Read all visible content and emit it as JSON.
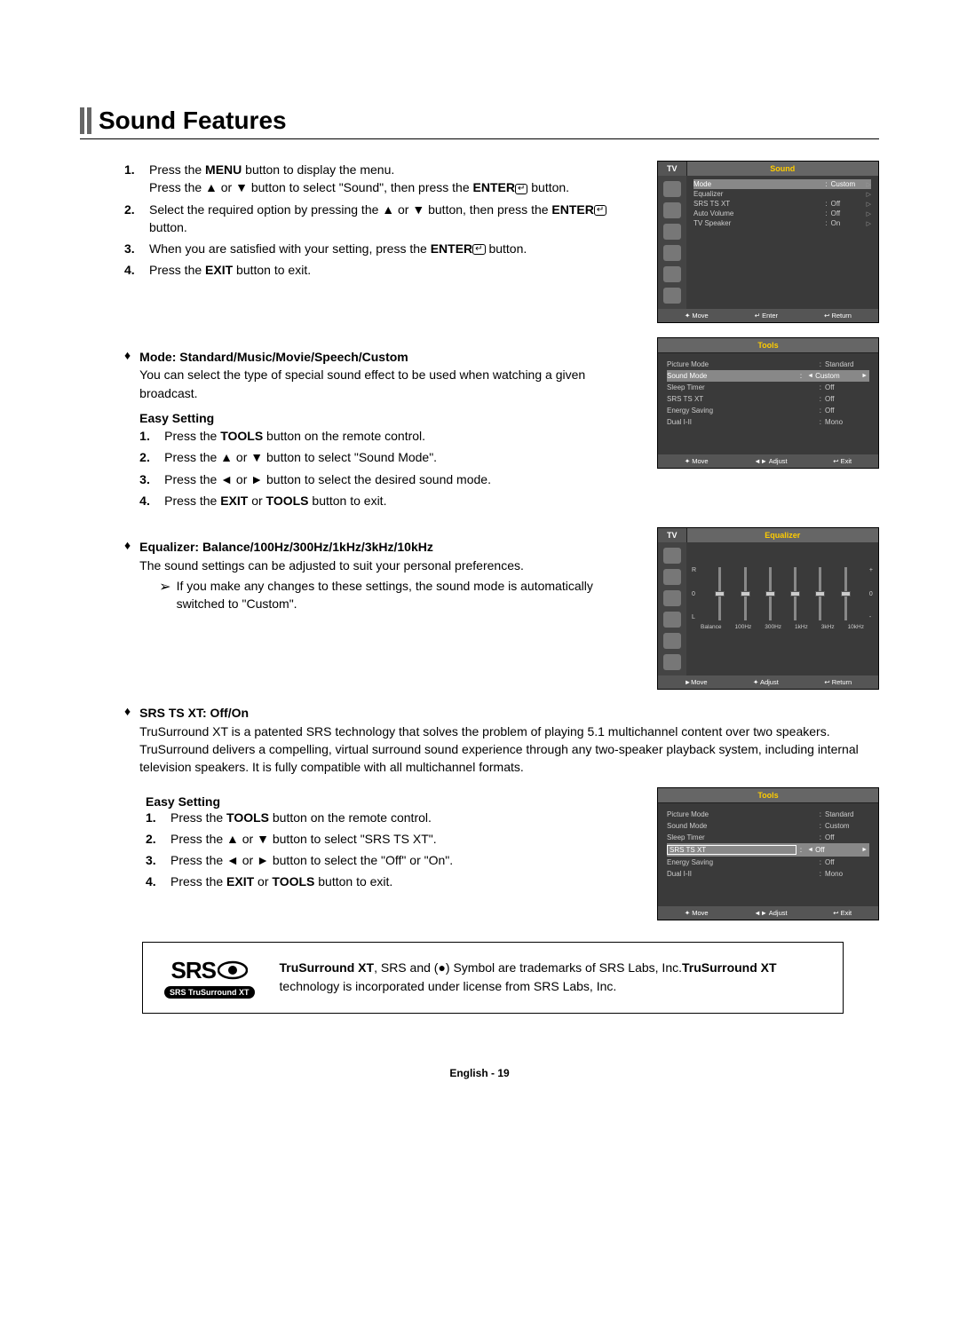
{
  "title": "Sound Features",
  "steps": [
    {
      "num": "1.",
      "html": "Press the <b>MENU</b> button to display the menu.<br>Press the ▲ or ▼ button to select \"Sound\", then press the <b>ENTER</b><span class='enter-icon'>↵</span> button."
    },
    {
      "num": "2.",
      "html": "Select the required option by pressing the ▲ or ▼ button, then press the <b>ENTER</b><span class='enter-icon'>↵</span> button."
    },
    {
      "num": "3.",
      "html": "When you are satisfied with your setting, press the <b>ENTER</b><span class='enter-icon'>↵</span> button."
    },
    {
      "num": "4.",
      "html": "Press the <b>EXIT</b> button to exit."
    }
  ],
  "mode": {
    "head": "Mode: Standard/Music/Movie/Speech/Custom",
    "desc": "You can select the type of special sound effect to be used when watching a given broadcast.",
    "easy_head": "Easy Setting",
    "easy": [
      {
        "num": "1.",
        "html": "Press the <b>TOOLS</b> button on the remote control."
      },
      {
        "num": "2.",
        "html": "Press the ▲ or ▼ button to select \"Sound Mode\"."
      },
      {
        "num": "3.",
        "html": "Press the ◄ or ► button to select the desired sound mode."
      },
      {
        "num": "4.",
        "html": "Press the <b>EXIT</b> or <b>TOOLS</b> button to exit."
      }
    ]
  },
  "eq": {
    "head": "Equalizer: Balance/100Hz/300Hz/1kHz/3kHz/10kHz",
    "desc": "The sound settings can be adjusted to suit your personal preferences.",
    "note": "If you make any changes to these settings, the sound mode is automatically switched to \"Custom\"."
  },
  "srs": {
    "head": "SRS TS XT: Off/On",
    "desc": "TruSurround XT is a patented SRS technology that solves the problem of playing 5.1 multichannel content over two speakers. TruSurround delivers a compelling, virtual surround sound experience through any two-speaker playback system, including internal television speakers. It is fully compatible with all multichannel formats.",
    "easy_head": "Easy Setting",
    "easy": [
      {
        "num": "1.",
        "html": "Press the <b>TOOLS</b> button on the remote control."
      },
      {
        "num": "2.",
        "html": "Press the ▲ or ▼ button to select \"SRS TS XT\"."
      },
      {
        "num": "3.",
        "html": "Press the ◄ or ► button to select the \"Off\" or \"On\"."
      },
      {
        "num": "4.",
        "html": "Press the <b>EXIT</b> or <b>TOOLS</b> button to exit."
      }
    ]
  },
  "osd_sound": {
    "tab_left": "TV",
    "tab_right": "Sound",
    "rows": [
      {
        "l": "Mode",
        "v": "Custom",
        "sel": true
      },
      {
        "l": "Equalizer",
        "v": ""
      },
      {
        "l": "SRS TS XT",
        "v": "Off"
      },
      {
        "l": "Auto Volume",
        "v": "Off"
      },
      {
        "l": "TV Speaker",
        "v": "On"
      }
    ],
    "footer": [
      "✦ Move",
      "↵ Enter",
      "↩ Return"
    ]
  },
  "osd_tools1": {
    "header": "Tools",
    "rows": [
      {
        "l": "Picture Mode",
        "v": "Standard"
      },
      {
        "l": "Sound Mode",
        "v": "Custom",
        "sel": true,
        "arrows": true
      },
      {
        "l": "Sleep Timer",
        "v": "Off"
      },
      {
        "l": "SRS TS XT",
        "v": "Off"
      },
      {
        "l": "Energy Saving",
        "v": "Off"
      },
      {
        "l": "Dual I-II",
        "v": "Mono"
      }
    ],
    "footer": [
      "✦ Move",
      "◄► Adjust",
      "↩ Exit"
    ]
  },
  "osd_eq": {
    "tab_left": "TV",
    "tab_right": "Equalizer",
    "labels": [
      "Balance",
      "100Hz",
      "300Hz",
      "1kHz",
      "3kHz",
      "10kHz"
    ],
    "scale_left": [
      "R",
      "0",
      "L"
    ],
    "scale_right": [
      "+",
      "0",
      "-"
    ],
    "footer": [
      "►Move",
      "✦ Adjust",
      "↩ Return"
    ]
  },
  "osd_tools2": {
    "header": "Tools",
    "rows": [
      {
        "l": "Picture Mode",
        "v": "Standard"
      },
      {
        "l": "Sound Mode",
        "v": "Custom"
      },
      {
        "l": "Sleep Timer",
        "v": "Off"
      },
      {
        "l": "SRS TS XT",
        "v": "Off",
        "sel": true,
        "boxed": true,
        "arrows": true
      },
      {
        "l": "Energy Saving",
        "v": "Off"
      },
      {
        "l": "Dual I-II",
        "v": "Mono"
      }
    ],
    "footer": [
      "✦ Move",
      "◄► Adjust",
      "↩ Exit"
    ]
  },
  "srs_box": {
    "logo_top": "SRS",
    "logo_bottom": "SRS TruSurround XT",
    "html": "<b>TruSurround XT</b>, SRS and (●) Symbol are trademarks of SRS Labs, Inc.<b>TruSurround XT</b> technology is incorporated under license from SRS Labs, Inc."
  },
  "page_footer": "English - 19"
}
